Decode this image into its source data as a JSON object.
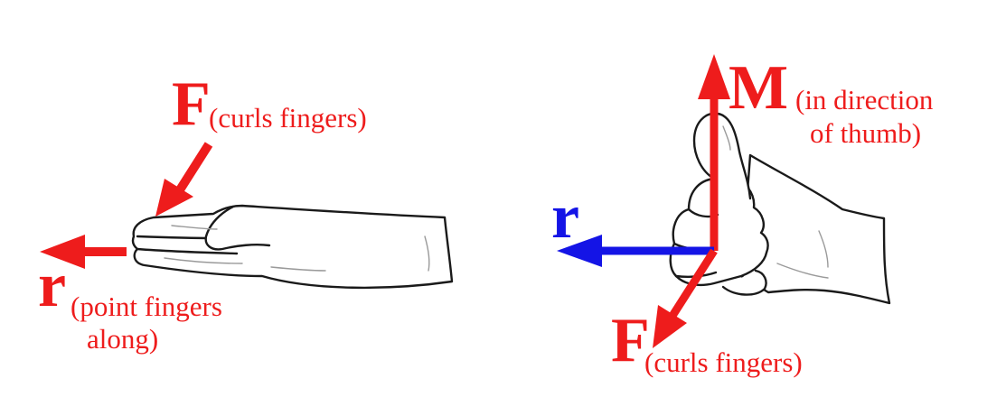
{
  "colors": {
    "force_red": "#ee1c1c",
    "r_blue": "#1414e6",
    "outline": "#1a1a1a"
  },
  "left": {
    "F_symbol": "F",
    "F_note": "(curls fingers)",
    "r_symbol": "r",
    "r_note_line1": "(point fingers",
    "r_note_line2": "along)"
  },
  "right": {
    "M_symbol": "M",
    "M_note_line1": "(in direction",
    "M_note_line2": "of thumb)",
    "r_symbol": "r",
    "F_symbol": "F",
    "F_note": "(curls fingers)"
  },
  "icons": {
    "left_hand": "flat-hand-icon",
    "right_hand": "thumbs-up-hand-icon"
  }
}
